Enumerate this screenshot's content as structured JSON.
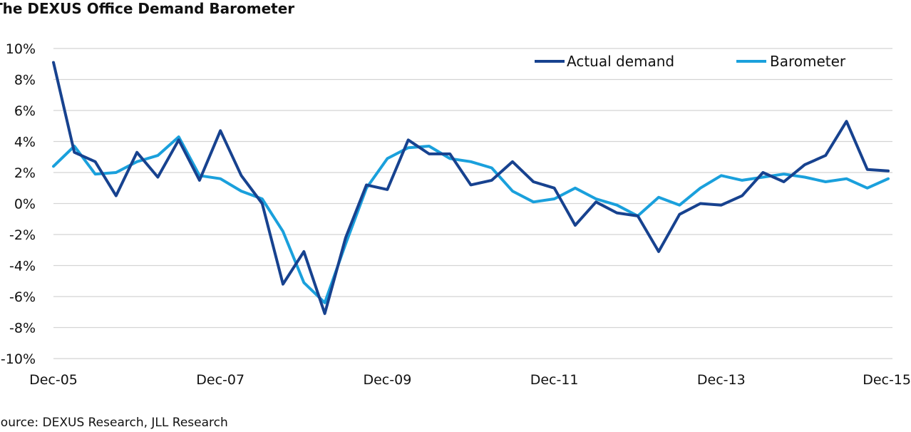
{
  "title": "The DEXUS Office Demand Barometer",
  "source": "Source: DEXUS Research, JLL Research",
  "chart_data": {
    "type": "line",
    "title": "The DEXUS Office Demand Barometer",
    "xlabel": "",
    "ylabel": "",
    "x_ticks": [
      "Dec-05",
      "Dec-07",
      "Dec-09",
      "Dec-11",
      "Dec-13",
      "Dec-15"
    ],
    "y_ticks": [
      "10%",
      "8%",
      "6%",
      "4%",
      "2%",
      "0%",
      "-2%",
      "-4%",
      "-6%",
      "-8%",
      "-10%"
    ],
    "ylim": [
      -10,
      10
    ],
    "y_unit": "%",
    "x_period": "quarterly, Dec-05 to Dec-15",
    "grid": "horizontal",
    "legend_position": "top-right",
    "series": [
      {
        "name": "Actual demand",
        "color": "#17428f",
        "values": [
          9.1,
          3.3,
          2.7,
          0.5,
          3.3,
          1.7,
          4.1,
          1.5,
          4.7,
          1.8,
          0.0,
          -5.2,
          -3.1,
          -7.1,
          -2.2,
          1.2,
          0.9,
          4.1,
          3.2,
          3.2,
          1.2,
          1.5,
          2.7,
          1.4,
          1.0,
          -1.4,
          0.1,
          -0.6,
          -0.8,
          -3.1,
          -0.7,
          0.0,
          -0.1,
          0.5,
          2.0,
          1.4,
          2.5,
          3.1,
          5.3,
          2.2,
          2.1
        ]
      },
      {
        "name": "Barometer",
        "color": "#1aa0dc",
        "values": [
          2.4,
          3.7,
          1.9,
          2.0,
          2.7,
          3.1,
          4.3,
          1.8,
          1.6,
          0.8,
          0.3,
          -1.8,
          -5.1,
          -6.4,
          -2.6,
          1.0,
          2.9,
          3.6,
          3.7,
          2.9,
          2.7,
          2.3,
          0.8,
          0.1,
          0.3,
          1.0,
          0.3,
          -0.1,
          -0.8,
          0.4,
          -0.1,
          1.0,
          1.8,
          1.5,
          1.7,
          1.9,
          1.7,
          1.4,
          1.6,
          1.0,
          1.6
        ]
      }
    ]
  }
}
